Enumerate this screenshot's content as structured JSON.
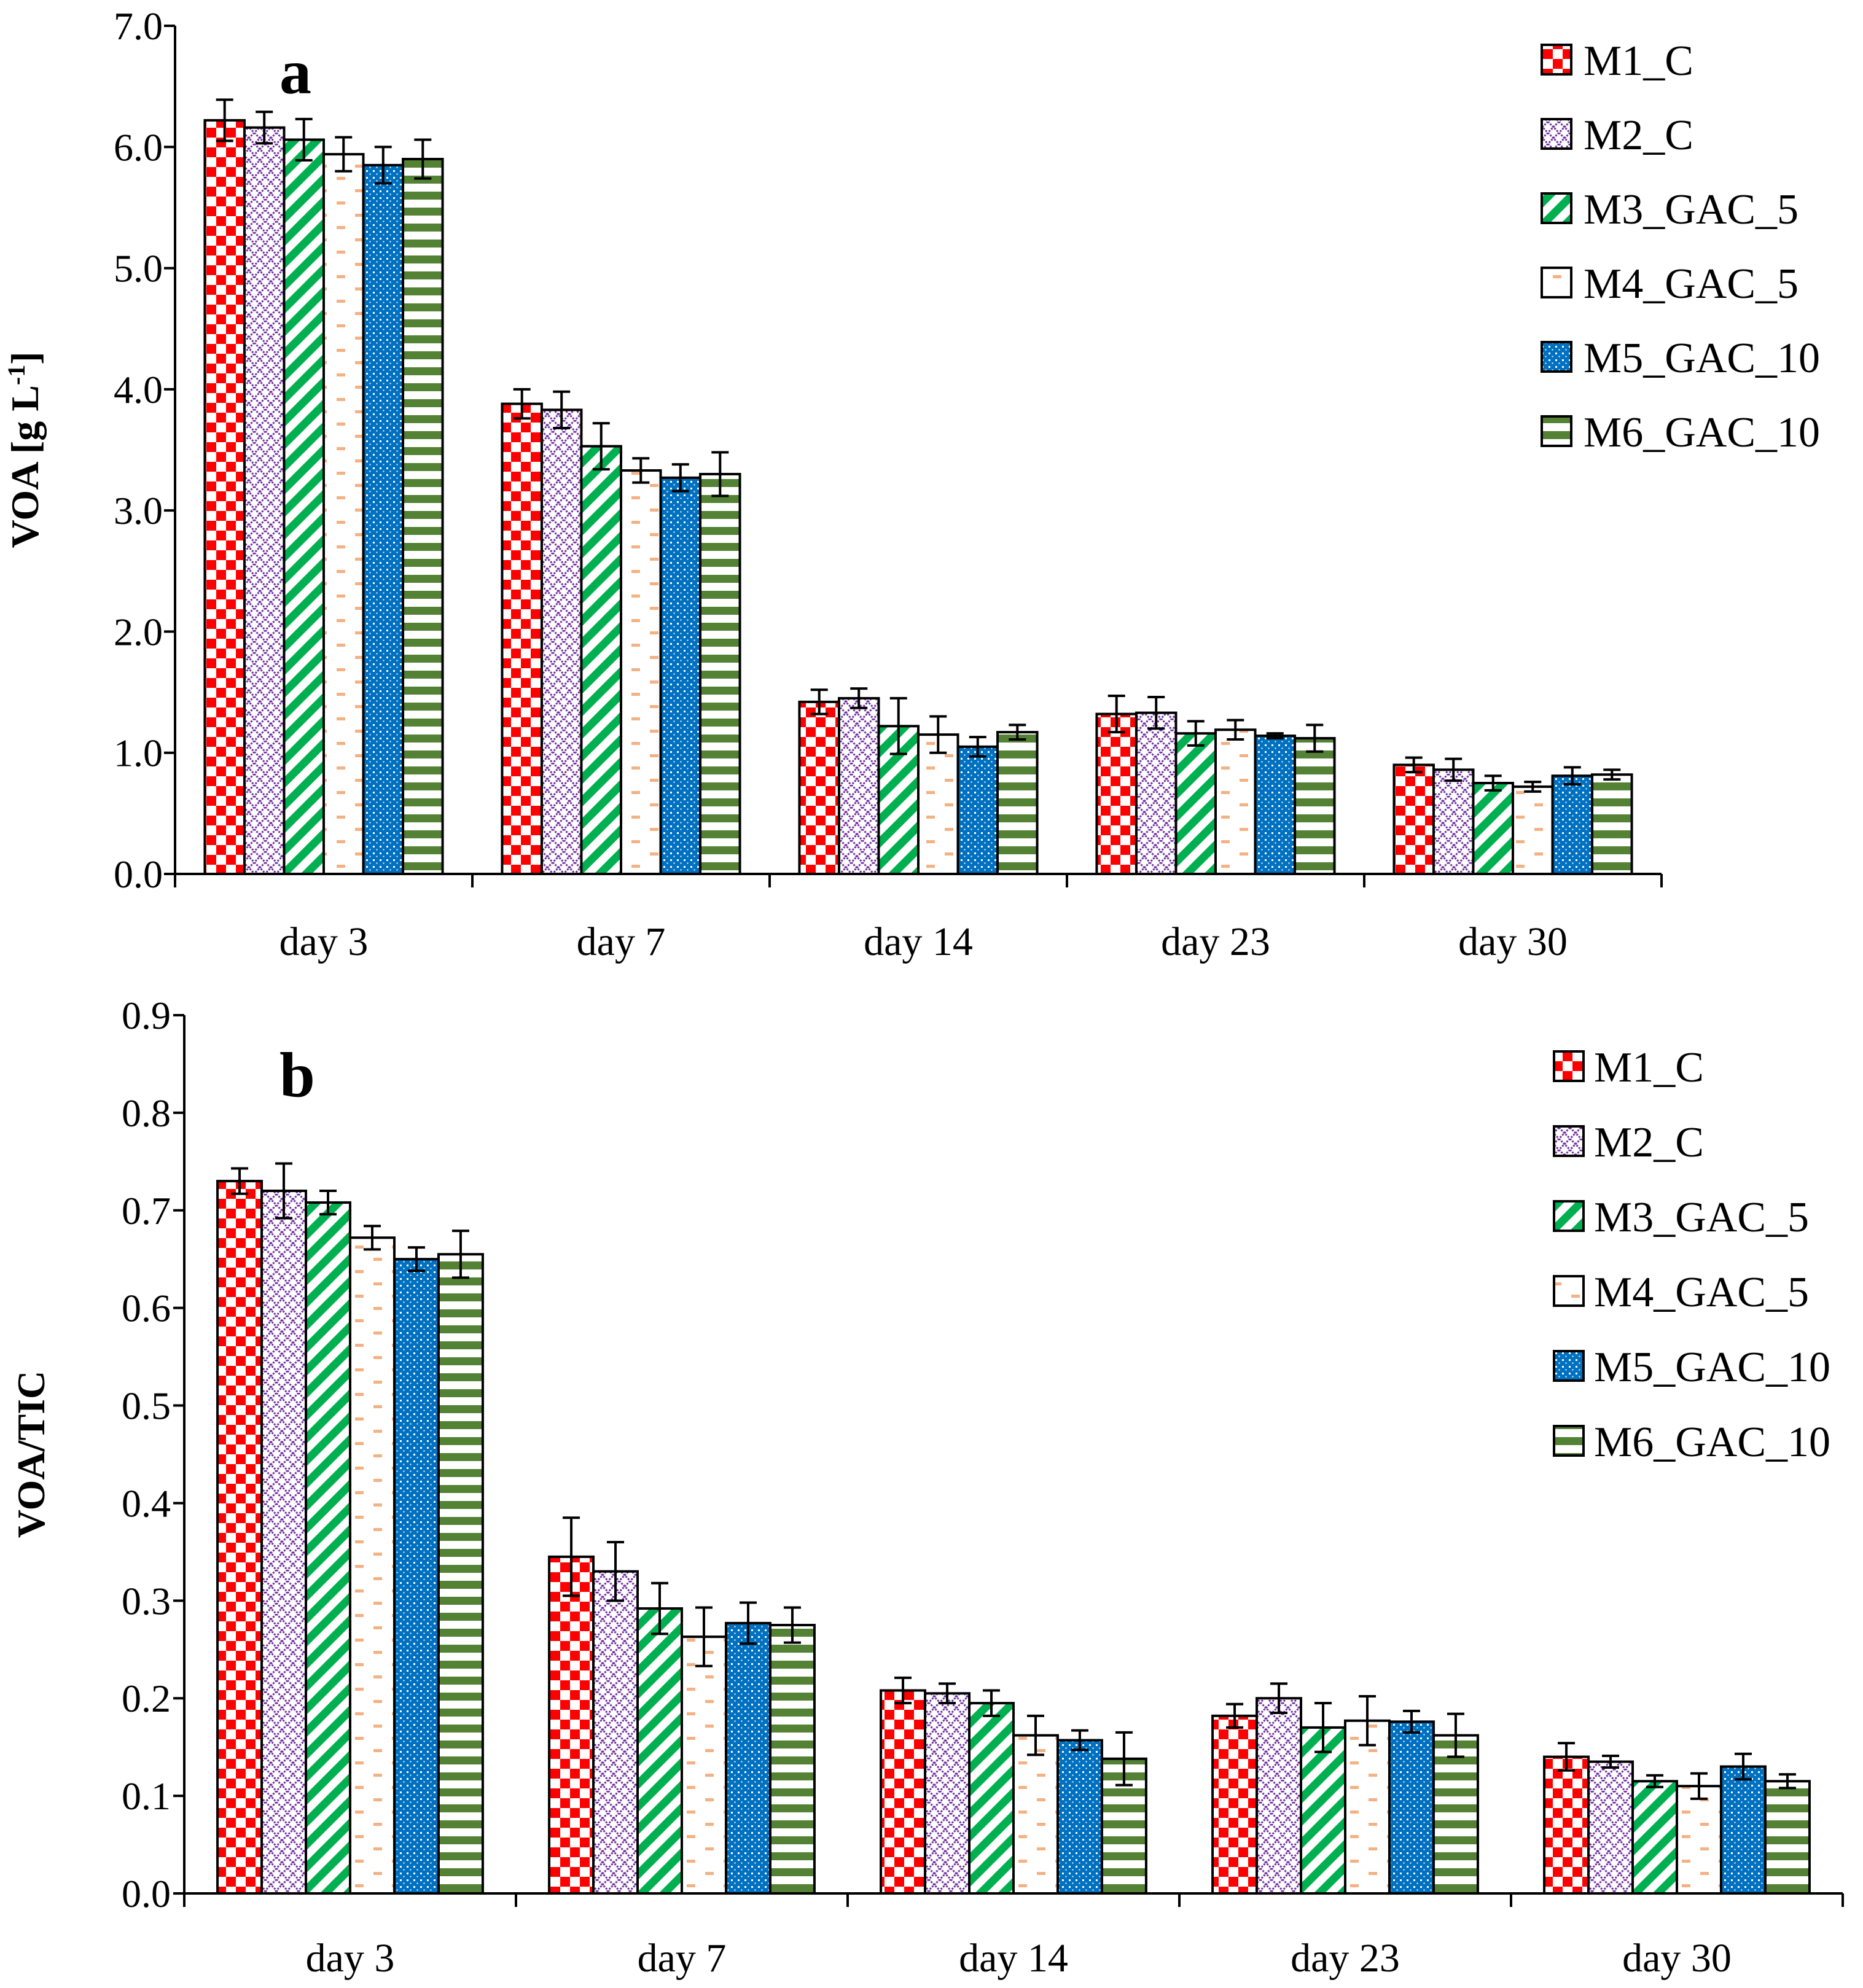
{
  "figure_title": "",
  "chart_data": [
    {
      "type": "bar",
      "panel_label": "a",
      "title": "",
      "xlabel": "",
      "ylabel": "VOA [g L",
      "ylabel_sup": "-1",
      "ylabel_end": "]",
      "ylim": [
        0,
        7
      ],
      "ytick_step": 1,
      "ytick_decimals": 1,
      "grid": false,
      "legend_position": "top-right",
      "categories": [
        "day 3",
        "day 7",
        "day 14",
        "day 23",
        "day 30"
      ],
      "series": [
        {
          "name": "M1_C",
          "values": [
            6.22,
            3.88,
            1.42,
            1.32,
            0.9
          ],
          "errors": [
            0.17,
            0.12,
            0.1,
            0.15,
            0.06
          ]
        },
        {
          "name": "M2_C",
          "values": [
            6.16,
            3.83,
            1.45,
            1.33,
            0.86
          ],
          "errors": [
            0.13,
            0.15,
            0.08,
            0.13,
            0.09
          ]
        },
        {
          "name": "M3_GAC_5",
          "values": [
            6.06,
            3.53,
            1.22,
            1.16,
            0.75
          ],
          "errors": [
            0.17,
            0.19,
            0.23,
            0.1,
            0.06
          ]
        },
        {
          "name": "M4_GAC_5",
          "values": [
            5.94,
            3.33,
            1.15,
            1.19,
            0.72
          ],
          "errors": [
            0.14,
            0.1,
            0.15,
            0.08,
            0.04
          ]
        },
        {
          "name": "M5_GAC_10",
          "values": [
            5.85,
            3.27,
            1.05,
            1.14,
            0.81
          ],
          "errors": [
            0.15,
            0.11,
            0.08,
            0.02,
            0.07
          ]
        },
        {
          "name": "M6_GAC_10",
          "values": [
            5.9,
            3.3,
            1.17,
            1.12,
            0.82
          ],
          "errors": [
            0.16,
            0.18,
            0.06,
            0.11,
            0.04
          ]
        }
      ]
    },
    {
      "type": "bar",
      "panel_label": "b",
      "title": "",
      "xlabel": "",
      "ylabel": "VOA/TIC",
      "ylabel_sup": "",
      "ylabel_end": "",
      "ylim": [
        0,
        0.9
      ],
      "ytick_step": 0.1,
      "ytick_decimals": 1,
      "grid": false,
      "legend_position": "top-right",
      "categories": [
        "day 3",
        "day 7",
        "day 14",
        "day 23",
        "day 30"
      ],
      "series": [
        {
          "name": "M1_C",
          "values": [
            0.73,
            0.345,
            0.208,
            0.182,
            0.14
          ],
          "errors": [
            0.013,
            0.04,
            0.013,
            0.012,
            0.014
          ]
        },
        {
          "name": "M2_C",
          "values": [
            0.72,
            0.33,
            0.205,
            0.2,
            0.135
          ],
          "errors": [
            0.028,
            0.03,
            0.01,
            0.015,
            0.006
          ]
        },
        {
          "name": "M3_GAC_5",
          "values": [
            0.708,
            0.292,
            0.195,
            0.17,
            0.115
          ],
          "errors": [
            0.012,
            0.026,
            0.013,
            0.025,
            0.006
          ]
        },
        {
          "name": "M4_GAC_5",
          "values": [
            0.672,
            0.263,
            0.162,
            0.177,
            0.11
          ],
          "errors": [
            0.012,
            0.03,
            0.02,
            0.025,
            0.013
          ]
        },
        {
          "name": "M5_GAC_10",
          "values": [
            0.65,
            0.277,
            0.157,
            0.176,
            0.13
          ],
          "errors": [
            0.012,
            0.021,
            0.01,
            0.011,
            0.013
          ]
        },
        {
          "name": "M6_GAC_10",
          "values": [
            0.655,
            0.275,
            0.138,
            0.162,
            0.115
          ],
          "errors": [
            0.024,
            0.018,
            0.027,
            0.022,
            0.007
          ]
        }
      ]
    }
  ],
  "series_styles": [
    {
      "pattern": "checker",
      "color": "#ff0000"
    },
    {
      "pattern": "crosshatch",
      "color": "#7030a0"
    },
    {
      "pattern": "diagonal",
      "color": "#00b050"
    },
    {
      "pattern": "dashes",
      "color": "#f4b183"
    },
    {
      "pattern": "dots",
      "color": "#0070c0"
    },
    {
      "pattern": "hstripes",
      "color": "#548235"
    }
  ]
}
